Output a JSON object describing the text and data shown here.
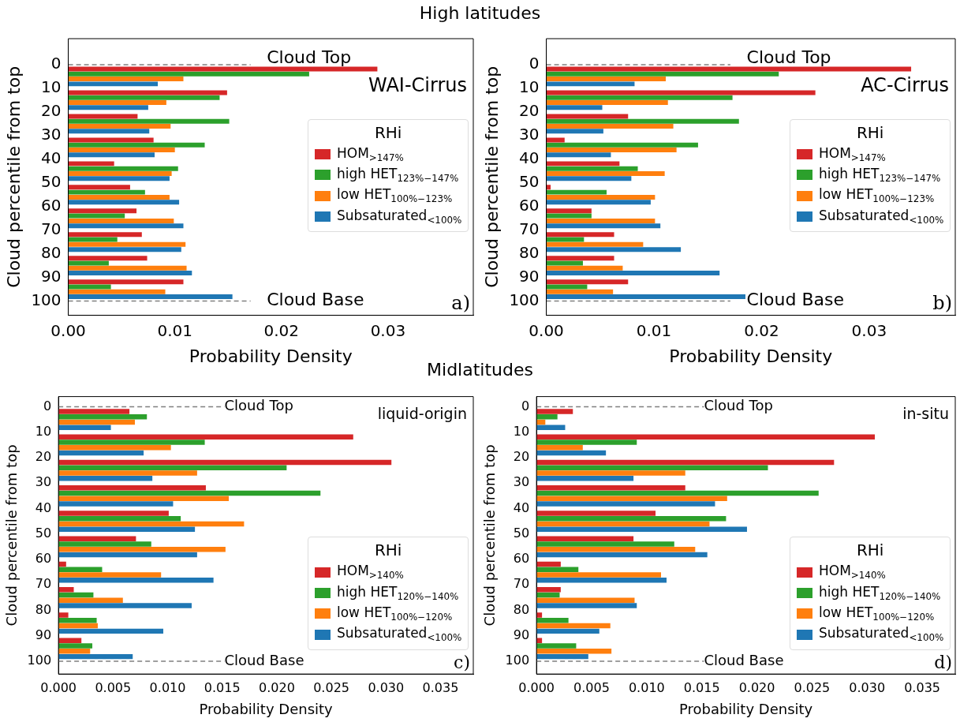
{
  "chart_data": [
    {
      "type": "bar",
      "orientation": "horizontal",
      "title": "High latitudes",
      "xlabel": "Probability Density",
      "ylabel": "Cloud percentile from top",
      "legend_title": "RHi",
      "legend": "right",
      "grid": false,
      "x": [
        5,
        15,
        25,
        35,
        45,
        55,
        65,
        75,
        85,
        95
      ],
      "xlim": [
        0,
        0.038
      ],
      "xticks": [
        {
          "value": 0,
          "label": "0.00"
        },
        {
          "value": 0.01,
          "label": "0.01"
        },
        {
          "value": 0.02,
          "label": "0.02"
        },
        {
          "value": 0.03,
          "label": "0.03"
        }
      ],
      "ylim": [
        106,
        -11
      ],
      "yticks": [
        0,
        10,
        20,
        30,
        40,
        50,
        60,
        70,
        80,
        90,
        100
      ],
      "series": [
        {
          "name": "HOM$_{>147%}$",
          "color": "#d62728",
          "values": [
            0.029,
            0.0149,
            0.0065,
            0.008,
            0.0043,
            0.0058,
            0.0064,
            0.0069,
            0.0074,
            0.0108
          ]
        },
        {
          "name": "high HET$_{123%−147%}$",
          "color": "#2ca02c",
          "values": [
            0.0226,
            0.0142,
            0.0151,
            0.0128,
            0.0103,
            0.0072,
            0.0053,
            0.0046,
            0.0038,
            0.004
          ]
        },
        {
          "name": "low HET$_{100%−123%}$",
          "color": "#ff7f0e",
          "values": [
            0.0108,
            0.0092,
            0.0096,
            0.01,
            0.0097,
            0.0095,
            0.0099,
            0.011,
            0.0111,
            0.0091
          ]
        },
        {
          "name": "Subsaturated$_{<100%}$",
          "color": "#1f77b4",
          "values": [
            0.0084,
            0.0075,
            0.0076,
            0.0081,
            0.0095,
            0.0104,
            0.0108,
            0.0106,
            0.0116,
            0.0154
          ]
        }
      ],
      "ref_lines": [
        {
          "axis": "y",
          "value": 0,
          "label": "Cloud Top",
          "color": "#808080",
          "line_style": "dashed"
        },
        {
          "axis": "y",
          "value": 100,
          "label": "Cloud Base",
          "color": "#808080",
          "line_style": "dashed"
        }
      ],
      "annotations": [
        "WAI-Cirrus",
        "a)"
      ]
    },
    {
      "type": "bar",
      "orientation": "horizontal",
      "xlabel": "Probability Density",
      "ylabel": "Cloud percentile from top",
      "legend_title": "RHi",
      "legend": "right",
      "grid": false,
      "x": [
        5,
        15,
        25,
        35,
        45,
        55,
        65,
        75,
        85,
        95
      ],
      "xlim": [
        0,
        0.038
      ],
      "xticks": [
        {
          "value": 0,
          "label": "0.00"
        },
        {
          "value": 0.01,
          "label": "0.01"
        },
        {
          "value": 0.02,
          "label": "0.02"
        },
        {
          "value": 0.03,
          "label": "0.03"
        }
      ],
      "ylim": [
        106,
        -11
      ],
      "yticks": [
        0,
        10,
        20,
        30,
        40,
        50,
        60,
        70,
        80,
        90,
        100
      ],
      "series": [
        {
          "name": "HOM$_{>147%}$",
          "color": "#d62728",
          "values": [
            0.0339,
            0.025,
            0.0076,
            0.0017,
            0.0068,
            0.0004,
            0.0042,
            0.0063,
            0.0063,
            0.0076
          ]
        },
        {
          "name": "high HET$_{123%−147%}$",
          "color": "#2ca02c",
          "values": [
            0.0216,
            0.0173,
            0.0179,
            0.0141,
            0.0085,
            0.0056,
            0.0042,
            0.0035,
            0.0034,
            0.0038
          ]
        },
        {
          "name": "low HET$_{100%−123%}$",
          "color": "#ff7f0e",
          "values": [
            0.0111,
            0.0113,
            0.0118,
            0.0121,
            0.011,
            0.0101,
            0.0101,
            0.009,
            0.0071,
            0.0062
          ]
        },
        {
          "name": "Subsaturated$_{<100%}$",
          "color": "#1f77b4",
          "values": [
            0.0082,
            0.0052,
            0.0053,
            0.006,
            0.0079,
            0.0097,
            0.0106,
            0.0125,
            0.0161,
            0.0185
          ]
        }
      ],
      "ref_lines": [
        {
          "axis": "y",
          "value": 0,
          "label": "Cloud Top",
          "color": "#808080",
          "line_style": "dashed"
        },
        {
          "axis": "y",
          "value": 100,
          "label": "Cloud Base",
          "color": "#808080",
          "line_style": "dashed"
        }
      ],
      "annotations": [
        "AC-Cirrus",
        "b)"
      ]
    },
    {
      "type": "bar",
      "orientation": "horizontal",
      "title": "Midlatitudes",
      "xlabel": "Probability Density",
      "ylabel": "Cloud percentile from top",
      "legend_title": "RHi",
      "legend": "bottom right",
      "grid": false,
      "x": [
        5,
        15,
        25,
        35,
        45,
        55,
        65,
        75,
        85,
        95
      ],
      "xlim": [
        0,
        0.038
      ],
      "xticks": [
        {
          "value": 0,
          "label": "0.000"
        },
        {
          "value": 0.005,
          "label": "0.005"
        },
        {
          "value": 0.01,
          "label": "0.010"
        },
        {
          "value": 0.015,
          "label": "0.015"
        },
        {
          "value": 0.02,
          "label": "0.020"
        },
        {
          "value": 0.025,
          "label": "0.025"
        },
        {
          "value": 0.03,
          "label": "0.030"
        },
        {
          "value": 0.035,
          "label": "0.035"
        }
      ],
      "ylim": [
        105,
        -4
      ],
      "yticks": [
        0,
        10,
        20,
        30,
        40,
        50,
        60,
        70,
        80,
        90,
        100
      ],
      "series": [
        {
          "name": "HOM$_{>140%}$",
          "color": "#d62728",
          "values": [
            0.0065,
            0.027,
            0.0305,
            0.0135,
            0.0101,
            0.0071,
            0.0007,
            0.0014,
            0.0009,
            0.0021
          ]
        },
        {
          "name": "high HET$_{120%−140%}$",
          "color": "#2ca02c",
          "values": [
            0.0081,
            0.0134,
            0.0209,
            0.024,
            0.0112,
            0.0085,
            0.004,
            0.0032,
            0.0035,
            0.0031
          ]
        },
        {
          "name": "low HET$_{100%−120%}$",
          "color": "#ff7f0e",
          "values": [
            0.007,
            0.0103,
            0.0127,
            0.0156,
            0.017,
            0.0153,
            0.0094,
            0.0059,
            0.0036,
            0.0029
          ]
        },
        {
          "name": "Subsaturated$_{<100%}$",
          "color": "#1f77b4",
          "values": [
            0.0048,
            0.0078,
            0.0086,
            0.0105,
            0.0125,
            0.0127,
            0.0142,
            0.0122,
            0.0096,
            0.0068
          ]
        }
      ],
      "ref_lines": [
        {
          "axis": "y",
          "value": 0,
          "label": "Cloud Top",
          "color": "#808080",
          "line_style": "dashed"
        },
        {
          "axis": "y",
          "value": 100,
          "label": "Cloud Base",
          "color": "#808080",
          "line_style": "dashed"
        }
      ],
      "annotations": [
        "liquid-origin",
        "c)"
      ]
    },
    {
      "type": "bar",
      "orientation": "horizontal",
      "xlabel": "Probability Density",
      "ylabel": "Cloud percentile from top",
      "legend_title": "RHi",
      "legend": "bottom right",
      "grid": false,
      "x": [
        5,
        15,
        25,
        35,
        45,
        55,
        65,
        75,
        85,
        95
      ],
      "xlim": [
        0,
        0.038
      ],
      "xticks": [
        {
          "value": 0,
          "label": "0.000"
        },
        {
          "value": 0.005,
          "label": "0.005"
        },
        {
          "value": 0.01,
          "label": "0.010"
        },
        {
          "value": 0.015,
          "label": "0.015"
        },
        {
          "value": 0.02,
          "label": "0.020"
        },
        {
          "value": 0.025,
          "label": "0.025"
        },
        {
          "value": 0.03,
          "label": "0.030"
        },
        {
          "value": 0.035,
          "label": "0.035"
        }
      ],
      "ylim": [
        105,
        -4
      ],
      "yticks": [
        0,
        10,
        20,
        30,
        40,
        50,
        60,
        70,
        80,
        90,
        100
      ],
      "series": [
        {
          "name": "HOM$_{>140%}$",
          "color": "#d62728",
          "values": [
            0.0033,
            0.0307,
            0.027,
            0.0135,
            0.0108,
            0.0088,
            0.0022,
            0.0022,
            0.0005,
            0.0005
          ]
        },
        {
          "name": "high HET$_{120%−140%}$",
          "color": "#2ca02c",
          "values": [
            0.0019,
            0.0091,
            0.021,
            0.0256,
            0.0172,
            0.0125,
            0.0038,
            0.0021,
            0.0029,
            0.0036
          ]
        },
        {
          "name": "low HET$_{100%−120%}$",
          "color": "#ff7f0e",
          "values": [
            0.0008,
            0.0042,
            0.0135,
            0.0173,
            0.0157,
            0.0144,
            0.0113,
            0.0089,
            0.0067,
            0.0068
          ]
        },
        {
          "name": "Subsaturated$_{<100%}$",
          "color": "#1f77b4",
          "values": [
            0.0026,
            0.0063,
            0.0088,
            0.0162,
            0.0191,
            0.0155,
            0.0118,
            0.0091,
            0.0057,
            0.0047
          ]
        }
      ],
      "ref_lines": [
        {
          "axis": "y",
          "value": 0,
          "label": "Cloud Top",
          "color": "#808080",
          "line_style": "dashed"
        },
        {
          "axis": "y",
          "value": 100,
          "label": "Cloud Base",
          "color": "#808080",
          "line_style": "dashed"
        }
      ],
      "annotations": [
        "in-situ",
        "d)"
      ]
    }
  ]
}
